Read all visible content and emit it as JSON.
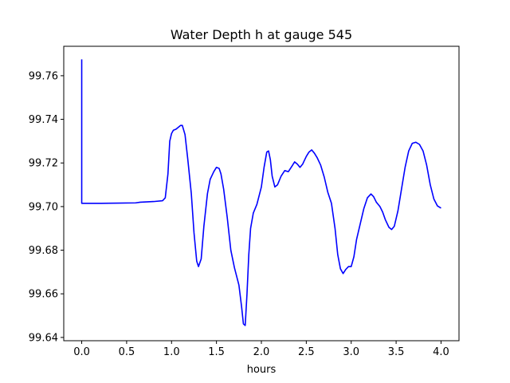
{
  "chart_data": {
    "type": "line",
    "title": "Water Depth h at gauge 545",
    "xlabel": "hours",
    "ylabel": "",
    "xlim": [
      -0.2,
      4.2
    ],
    "ylim": [
      99.6385,
      99.7735
    ],
    "xticks": [
      0.0,
      0.5,
      1.0,
      1.5,
      2.0,
      2.5,
      3.0,
      3.5,
      4.0
    ],
    "xtick_labels": [
      "0.0",
      "0.5",
      "1.0",
      "1.5",
      "2.0",
      "2.5",
      "3.0",
      "3.5",
      "4.0"
    ],
    "yticks": [
      99.64,
      99.66,
      99.68,
      99.7,
      99.72,
      99.74,
      99.76
    ],
    "ytick_labels": [
      "99.64",
      "99.66",
      "99.68",
      "99.70",
      "99.72",
      "99.74",
      "99.76"
    ],
    "grid": false,
    "series": [
      {
        "color": "#0000ff",
        "x": [
          0.0,
          0.0,
          0.05,
          0.2,
          0.4,
          0.6,
          0.65,
          0.8,
          0.9,
          0.93,
          0.96,
          0.98,
          1.0,
          1.02,
          1.05,
          1.1,
          1.12,
          1.15,
          1.18,
          1.22,
          1.25,
          1.28,
          1.3,
          1.33,
          1.36,
          1.4,
          1.43,
          1.47,
          1.5,
          1.53,
          1.55,
          1.58,
          1.62,
          1.66,
          1.7,
          1.75,
          1.78,
          1.8,
          1.82,
          1.84,
          1.86,
          1.88,
          1.91,
          1.95,
          2.0,
          2.03,
          2.06,
          2.08,
          2.1,
          2.12,
          2.15,
          2.18,
          2.22,
          2.26,
          2.3,
          2.34,
          2.37,
          2.4,
          2.43,
          2.46,
          2.5,
          2.53,
          2.56,
          2.59,
          2.62,
          2.66,
          2.7,
          2.74,
          2.78,
          2.82,
          2.85,
          2.88,
          2.91,
          2.94,
          2.97,
          3.0,
          3.03,
          3.06,
          3.1,
          3.14,
          3.18,
          3.22,
          3.25,
          3.28,
          3.32,
          3.35,
          3.38,
          3.42,
          3.45,
          3.48,
          3.52,
          3.56,
          3.6,
          3.64,
          3.68,
          3.72,
          3.76,
          3.8,
          3.84,
          3.88,
          3.92,
          3.96,
          4.0
        ],
        "y": [
          99.7675,
          99.7015,
          99.7015,
          99.7015,
          99.7016,
          99.7017,
          99.702,
          99.7023,
          99.7027,
          99.704,
          99.715,
          99.73,
          99.7335,
          99.735,
          99.7355,
          99.7372,
          99.7372,
          99.733,
          99.722,
          99.706,
          99.688,
          99.675,
          99.6725,
          99.676,
          99.691,
          99.706,
          99.7125,
          99.716,
          99.718,
          99.7175,
          99.715,
          99.708,
          99.695,
          99.68,
          99.672,
          99.664,
          99.654,
          99.6462,
          99.6455,
          99.66,
          99.678,
          99.69,
          99.697,
          99.701,
          99.709,
          99.718,
          99.725,
          99.7255,
          99.7215,
          99.714,
          99.709,
          99.71,
          99.714,
          99.7165,
          99.716,
          99.7185,
          99.7205,
          99.7195,
          99.718,
          99.7195,
          99.723,
          99.725,
          99.726,
          99.7245,
          99.7225,
          99.719,
          99.7135,
          99.7065,
          99.7015,
          99.69,
          99.678,
          99.6715,
          99.6693,
          99.6712,
          99.6725,
          99.6725,
          99.677,
          99.685,
          99.692,
          99.699,
          99.704,
          99.7058,
          99.7045,
          99.702,
          99.7,
          99.6975,
          99.694,
          99.6905,
          99.6895,
          99.691,
          99.698,
          99.708,
          99.718,
          99.7255,
          99.729,
          99.7295,
          99.7285,
          99.7255,
          99.719,
          99.71,
          99.7035,
          99.7003,
          99.6993
        ]
      }
    ]
  }
}
